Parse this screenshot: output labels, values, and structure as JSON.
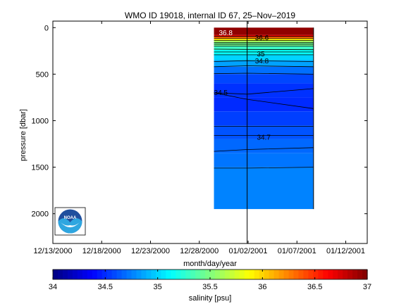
{
  "chart_data": {
    "type": "heatmap",
    "title": "WMO ID 19018, internal ID 67, 25–Nov–2019",
    "xlabel": "month/day/year",
    "ylabel": "pressure [dbar]",
    "colorbar_label": "salinity [psu]",
    "x_tick_labels": [
      "12/13/2000",
      "12/18/2000",
      "12/23/2000",
      "12/28/2000",
      "01/02/2001",
      "01/07/2001",
      "01/12/2001"
    ],
    "x_tick_days": [
      0,
      5,
      10,
      15,
      20,
      25,
      30
    ],
    "xlim_days": [
      0,
      32.2
    ],
    "y_ticks": [
      0,
      500,
      1000,
      1500,
      2000
    ],
    "ylim": [
      -70,
      2320
    ],
    "y_reversed": true,
    "colorbar_ticks": [
      34,
      34.5,
      35,
      35.5,
      36,
      36.5,
      37
    ],
    "clim": [
      34,
      37
    ],
    "colormap": "jet",
    "data_extent_days": [
      16.5,
      26.7
    ],
    "marker_day": 19.9,
    "profile_days": [
      16.5,
      19.9,
      26.7
    ],
    "pressure_max": 1950,
    "layers": [
      {
        "p_top": 0,
        "p_bot": 80,
        "salinity": 36.95
      },
      {
        "p_top": 80,
        "p_bot": 100,
        "salinity": 36.7
      },
      {
        "p_top": 100,
        "p_bot": 120,
        "salinity": 36.3
      },
      {
        "p_top": 120,
        "p_bot": 140,
        "salinity": 35.9
      },
      {
        "p_top": 140,
        "p_bot": 160,
        "salinity": 35.6
      },
      {
        "p_top": 160,
        "p_bot": 200,
        "salinity": 35.45
      },
      {
        "p_top": 200,
        "p_bot": 240,
        "salinity": 35.3
      },
      {
        "p_top": 240,
        "p_bot": 290,
        "salinity": 35.15
      },
      {
        "p_top": 290,
        "p_bot": 350,
        "salinity": 35.0
      },
      {
        "p_top": 350,
        "p_bot": 420,
        "salinity": 34.85
      },
      {
        "p_top": 420,
        "p_bot": 500,
        "salinity": 34.7
      },
      {
        "p_top": 500,
        "p_bot": 600,
        "salinity": 34.58
      },
      {
        "p_top": 600,
        "p_bot": 750,
        "salinity": 34.52
      },
      {
        "p_top": 750,
        "p_bot": 900,
        "salinity": 34.5
      },
      {
        "p_top": 900,
        "p_bot": 1050,
        "salinity": 34.56
      },
      {
        "p_top": 1050,
        "p_bot": 1200,
        "salinity": 34.62
      },
      {
        "p_top": 1200,
        "p_bot": 1350,
        "salinity": 34.68
      },
      {
        "p_top": 1350,
        "p_bot": 1500,
        "salinity": 34.72
      },
      {
        "p_top": 1500,
        "p_bot": 1950,
        "salinity": 34.76
      }
    ],
    "contour_lines": [
      {
        "p": [
          95,
          95,
          95
        ]
      },
      {
        "p": [
          118,
          118,
          118
        ]
      },
      {
        "p": [
          138,
          138,
          138
        ]
      },
      {
        "p": [
          160,
          160,
          160
        ]
      },
      {
        "p": [
          178,
          178,
          178
        ]
      },
      {
        "p": [
          198,
          198,
          198
        ]
      },
      {
        "p": [
          232,
          235,
          238
        ]
      },
      {
        "p": [
          262,
          262,
          262
        ]
      },
      {
        "p": [
          292,
          292,
          292
        ]
      },
      {
        "p": [
          365,
          355,
          365
        ]
      },
      {
        "p": [
          420,
          410,
          420
        ]
      },
      {
        "p": [
          495,
          490,
          500
        ]
      },
      {
        "p": [
          700,
          715,
          655
        ]
      },
      {
        "p": [
          700,
          770,
          870
        ]
      },
      {
        "p": [
          1060,
          1060,
          1060
        ]
      },
      {
        "p": [
          1160,
          1160,
          1160
        ]
      },
      {
        "p": [
          1330,
          1310,
          1290
        ]
      },
      {
        "p": [
          1510,
          1510,
          1500
        ]
      }
    ],
    "contour_labels": [
      {
        "text": "36.8",
        "day": 17.0,
        "p": 60,
        "color": "#ffffff"
      },
      {
        "text": "36.6",
        "day": 20.7,
        "p": 110,
        "color": "#000000"
      },
      {
        "text": "35",
        "day": 20.9,
        "p": 285,
        "color": "#000000"
      },
      {
        "text": "34.8",
        "day": 20.7,
        "p": 360,
        "color": "#000000"
      },
      {
        "text": "34.5",
        "day": 16.5,
        "p": 700,
        "color": "#000000"
      },
      {
        "text": "34.7",
        "day": 20.9,
        "p": 1180,
        "color": "#000000"
      }
    ]
  },
  "logo": {
    "text": "NOAA"
  }
}
